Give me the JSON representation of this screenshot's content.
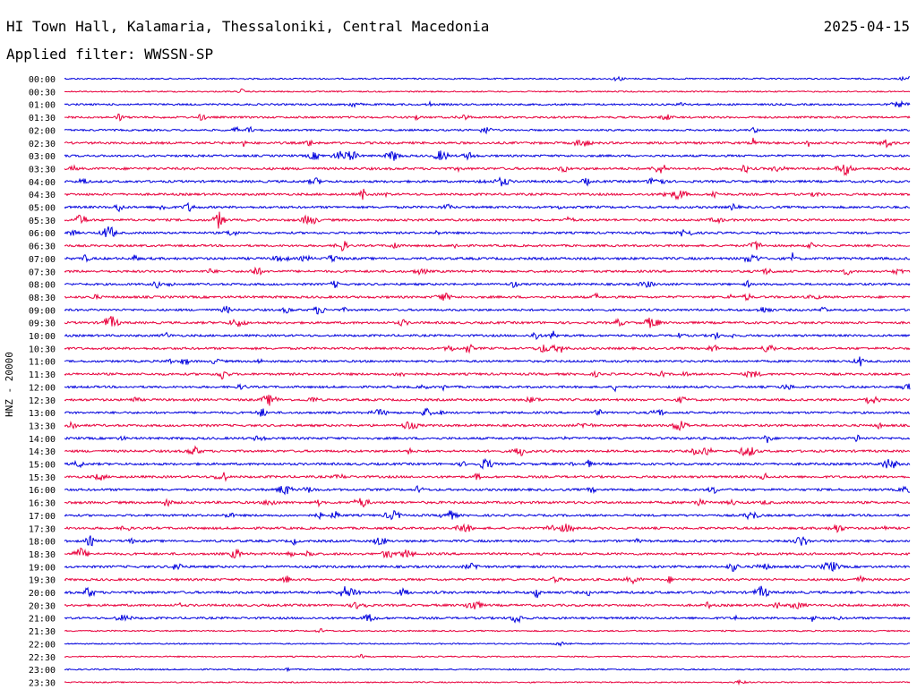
{
  "header": {
    "station": "HI Town Hall, Kalamaria, Thessaloniki, Central Macedonia",
    "date": "2025-04-15",
    "filter": "Applied filter: WWSSN-SP"
  },
  "chart_data": {
    "type": "line",
    "ylabel": "HNZ - 20000",
    "colors": [
      "#0000dd",
      "#e8003c"
    ],
    "grid": false,
    "categories": [
      "00:00",
      "00:30",
      "01:00",
      "01:30",
      "02:00",
      "02:30",
      "03:00",
      "03:30",
      "04:00",
      "04:30",
      "05:00",
      "05:30",
      "06:00",
      "06:30",
      "07:00",
      "07:30",
      "08:00",
      "08:30",
      "09:00",
      "09:30",
      "10:00",
      "10:30",
      "11:00",
      "11:30",
      "12:00",
      "12:30",
      "13:00",
      "13:30",
      "14:00",
      "14:30",
      "15:00",
      "15:30",
      "16:00",
      "16:30",
      "17:00",
      "17:30",
      "18:00",
      "18:30",
      "19:00",
      "19:30",
      "20:00",
      "20:30",
      "21:00",
      "21:30",
      "22:00",
      "22:30",
      "23:00",
      "23:30"
    ],
    "activity": [
      0.2,
      0.15,
      0.5,
      0.6,
      0.5,
      0.8,
      0.7,
      0.9,
      0.8,
      0.8,
      0.8,
      0.8,
      0.7,
      0.7,
      0.9,
      0.8,
      0.7,
      0.8,
      0.7,
      0.8,
      0.7,
      0.8,
      0.7,
      0.8,
      0.7,
      0.8,
      0.7,
      0.8,
      0.8,
      0.8,
      0.8,
      0.8,
      0.8,
      0.9,
      0.7,
      0.8,
      0.8,
      0.8,
      0.8,
      0.8,
      0.9,
      0.8,
      0.7,
      0.15,
      0.1,
      0.1,
      0.15,
      0.1
    ]
  }
}
